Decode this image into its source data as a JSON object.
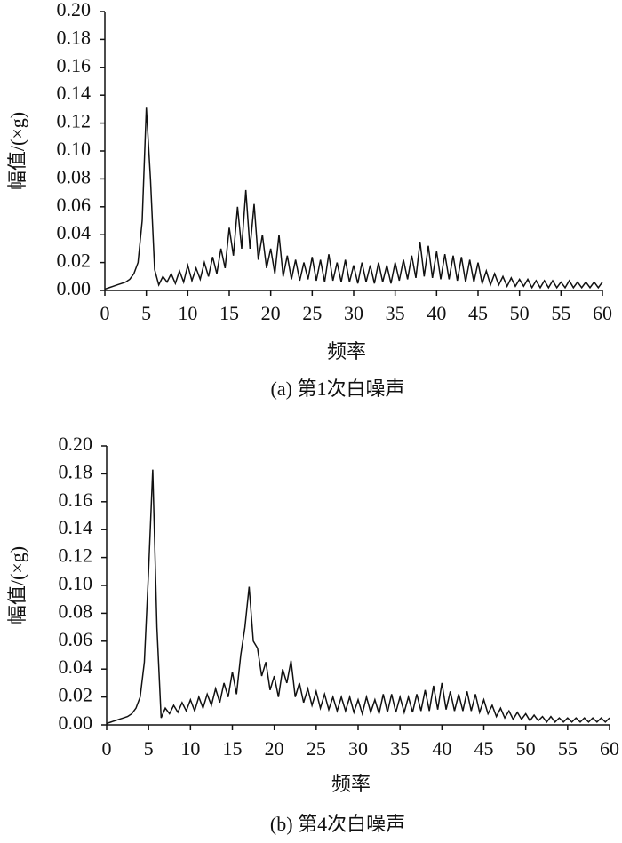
{
  "chart_data": [
    {
      "type": "line",
      "caption": "(a) 第1次白噪声",
      "ylabel": "幅值/(×g)",
      "xlabel": "频率",
      "color": "#111111",
      "xlim": [
        0,
        60
      ],
      "xticks": [
        0,
        5,
        10,
        15,
        20,
        25,
        30,
        35,
        40,
        45,
        50,
        55,
        60
      ],
      "ylim": [
        0,
        0.2
      ],
      "yticks": [
        {
          "value": 0,
          "label": "0.00"
        },
        {
          "value": 0.02,
          "label": "0.02"
        },
        {
          "value": 0.04,
          "label": "0.04"
        },
        {
          "value": 0.06,
          "label": "0.06"
        },
        {
          "value": 0.08,
          "label": "0.08"
        },
        {
          "value": 0.1,
          "label": "0.10"
        },
        {
          "value": 0.12,
          "label": "0.12"
        },
        {
          "value": 0.14,
          "label": "0.14"
        },
        {
          "value": 0.16,
          "label": "0.16"
        },
        {
          "value": 0.18,
          "label": "0.18"
        },
        {
          "value": 0.2,
          "label": "0.20"
        }
      ],
      "x": [
        0,
        0.5,
        1,
        1.5,
        2,
        2.5,
        3,
        3.5,
        4,
        4.5,
        5,
        5.5,
        6,
        6.5,
        7,
        7.5,
        8,
        8.5,
        9,
        9.5,
        10,
        10.5,
        11,
        11.5,
        12,
        12.5,
        13,
        13.5,
        14,
        14.5,
        15,
        15.5,
        16,
        16.5,
        17,
        17.5,
        18,
        18.5,
        19,
        19.5,
        20,
        20.5,
        21,
        21.5,
        22,
        22.5,
        23,
        23.5,
        24,
        24.5,
        25,
        25.5,
        26,
        26.5,
        27,
        27.5,
        28,
        28.5,
        29,
        29.5,
        30,
        30.5,
        31,
        31.5,
        32,
        32.5,
        33,
        33.5,
        34,
        34.5,
        35,
        35.5,
        36,
        36.5,
        37,
        37.5,
        38,
        38.5,
        39,
        39.5,
        40,
        40.5,
        41,
        41.5,
        42,
        42.5,
        43,
        43.5,
        44,
        44.5,
        45,
        45.5,
        46,
        46.5,
        47,
        47.5,
        48,
        48.5,
        49,
        49.5,
        50,
        50.5,
        51,
        51.5,
        52,
        52.5,
        53,
        53.5,
        54,
        54.5,
        55,
        55.5,
        56,
        56.5,
        57,
        57.5,
        58,
        58.5,
        59,
        59.5,
        60
      ],
      "values": [
        0.001,
        0.002,
        0.003,
        0.004,
        0.005,
        0.006,
        0.008,
        0.012,
        0.02,
        0.05,
        0.131,
        0.08,
        0.015,
        0.004,
        0.01,
        0.006,
        0.012,
        0.005,
        0.014,
        0.006,
        0.018,
        0.007,
        0.016,
        0.008,
        0.02,
        0.01,
        0.024,
        0.012,
        0.03,
        0.016,
        0.045,
        0.025,
        0.06,
        0.03,
        0.072,
        0.03,
        0.062,
        0.022,
        0.04,
        0.016,
        0.03,
        0.012,
        0.04,
        0.01,
        0.025,
        0.008,
        0.022,
        0.007,
        0.02,
        0.008,
        0.024,
        0.007,
        0.022,
        0.006,
        0.026,
        0.007,
        0.02,
        0.006,
        0.022,
        0.006,
        0.018,
        0.005,
        0.02,
        0.006,
        0.018,
        0.005,
        0.02,
        0.006,
        0.018,
        0.005,
        0.02,
        0.007,
        0.022,
        0.008,
        0.025,
        0.009,
        0.035,
        0.01,
        0.032,
        0.009,
        0.028,
        0.008,
        0.026,
        0.008,
        0.025,
        0.007,
        0.024,
        0.006,
        0.022,
        0.006,
        0.02,
        0.005,
        0.014,
        0.004,
        0.012,
        0.004,
        0.01,
        0.003,
        0.009,
        0.003,
        0.008,
        0.003,
        0.008,
        0.002,
        0.007,
        0.002,
        0.007,
        0.002,
        0.007,
        0.002,
        0.006,
        0.002,
        0.007,
        0.002,
        0.006,
        0.002,
        0.006,
        0.002,
        0.006,
        0.002,
        0.006
      ]
    },
    {
      "type": "line",
      "caption": "(b) 第4次白噪声",
      "ylabel": "幅值/(×g)",
      "xlabel": "频率",
      "color": "#111111",
      "xlim": [
        0,
        60
      ],
      "xticks": [
        0,
        5,
        10,
        15,
        20,
        25,
        30,
        35,
        40,
        45,
        50,
        55,
        60
      ],
      "ylim": [
        0,
        0.2
      ],
      "yticks": [
        {
          "value": 0,
          "label": "0.00"
        },
        {
          "value": 0.02,
          "label": "0.02"
        },
        {
          "value": 0.04,
          "label": "0.04"
        },
        {
          "value": 0.06,
          "label": "0.06"
        },
        {
          "value": 0.08,
          "label": "0.08"
        },
        {
          "value": 0.1,
          "label": "0.10"
        },
        {
          "value": 0.12,
          "label": "0.12"
        },
        {
          "value": 0.14,
          "label": "0.14"
        },
        {
          "value": 0.16,
          "label": "0.16"
        },
        {
          "value": 0.18,
          "label": "0.18"
        },
        {
          "value": 0.2,
          "label": "0.20"
        }
      ],
      "x": [
        0,
        0.5,
        1,
        1.5,
        2,
        2.5,
        3,
        3.5,
        4,
        4.5,
        5,
        5.5,
        6,
        6.5,
        7,
        7.5,
        8,
        8.5,
        9,
        9.5,
        10,
        10.5,
        11,
        11.5,
        12,
        12.5,
        13,
        13.5,
        14,
        14.5,
        15,
        15.5,
        16,
        16.5,
        17,
        17.5,
        18,
        18.5,
        19,
        19.5,
        20,
        20.5,
        21,
        21.5,
        22,
        22.5,
        23,
        23.5,
        24,
        24.5,
        25,
        25.5,
        26,
        26.5,
        27,
        27.5,
        28,
        28.5,
        29,
        29.5,
        30,
        30.5,
        31,
        31.5,
        32,
        32.5,
        33,
        33.5,
        34,
        34.5,
        35,
        35.5,
        36,
        36.5,
        37,
        37.5,
        38,
        38.5,
        39,
        39.5,
        40,
        40.5,
        41,
        41.5,
        42,
        42.5,
        43,
        43.5,
        44,
        44.5,
        45,
        45.5,
        46,
        46.5,
        47,
        47.5,
        48,
        48.5,
        49,
        49.5,
        50,
        50.5,
        51,
        51.5,
        52,
        52.5,
        53,
        53.5,
        54,
        54.5,
        55,
        55.5,
        56,
        56.5,
        57,
        57.5,
        58,
        58.5,
        59,
        59.5,
        60
      ],
      "values": [
        0.001,
        0.002,
        0.003,
        0.004,
        0.005,
        0.006,
        0.008,
        0.012,
        0.02,
        0.045,
        0.11,
        0.183,
        0.07,
        0.005,
        0.012,
        0.008,
        0.014,
        0.009,
        0.016,
        0.01,
        0.018,
        0.01,
        0.02,
        0.012,
        0.022,
        0.014,
        0.026,
        0.016,
        0.03,
        0.02,
        0.038,
        0.022,
        0.05,
        0.07,
        0.099,
        0.06,
        0.055,
        0.035,
        0.045,
        0.025,
        0.035,
        0.02,
        0.04,
        0.03,
        0.046,
        0.02,
        0.03,
        0.016,
        0.026,
        0.014,
        0.024,
        0.012,
        0.022,
        0.011,
        0.02,
        0.01,
        0.02,
        0.01,
        0.02,
        0.009,
        0.018,
        0.008,
        0.02,
        0.009,
        0.018,
        0.008,
        0.022,
        0.009,
        0.022,
        0.009,
        0.02,
        0.009,
        0.02,
        0.009,
        0.022,
        0.01,
        0.025,
        0.01,
        0.028,
        0.011,
        0.03,
        0.011,
        0.024,
        0.01,
        0.022,
        0.01,
        0.024,
        0.01,
        0.022,
        0.009,
        0.018,
        0.008,
        0.014,
        0.006,
        0.012,
        0.005,
        0.01,
        0.004,
        0.009,
        0.004,
        0.008,
        0.003,
        0.007,
        0.003,
        0.006,
        0.002,
        0.006,
        0.002,
        0.005,
        0.002,
        0.005,
        0.002,
        0.005,
        0.002,
        0.005,
        0.002,
        0.005,
        0.002,
        0.005,
        0.002,
        0.005
      ]
    }
  ]
}
